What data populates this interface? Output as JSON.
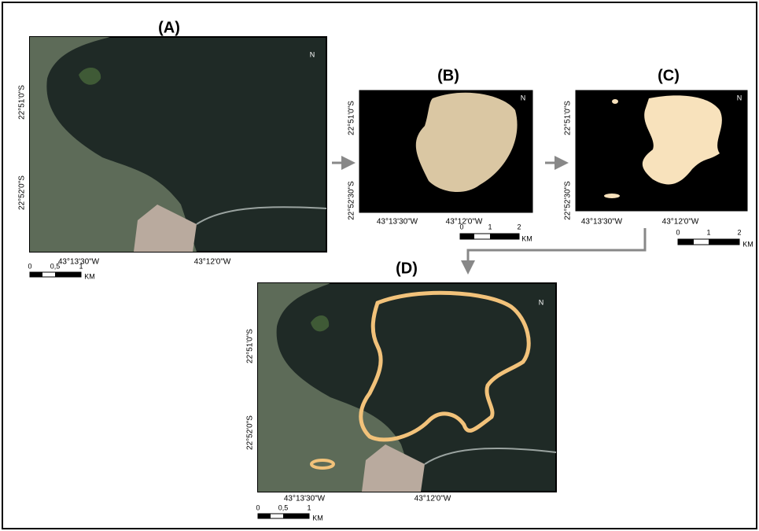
{
  "panels": [
    {
      "label": "(A)",
      "lat": [
        "22°51'0\"S",
        "22°52'0\"S"
      ],
      "lon": [
        "43°13'30\"W",
        "43°12'0\"W"
      ],
      "scale": [
        "0",
        "0,5",
        "1"
      ],
      "unit": "KM",
      "north": "N"
    },
    {
      "label": "(B)",
      "lat": [
        "22°51'0\"S",
        "22°52'30\"S"
      ],
      "lon": [
        "43°13'30\"W",
        "43°12'0\"W"
      ],
      "scale": [
        "0",
        "1",
        "2"
      ],
      "unit": "KM",
      "north": "N"
    },
    {
      "label": "(C)",
      "lat": [
        "22°51'0\"S",
        "22°52'30\"S"
      ],
      "lon": [
        "43°13'30\"W",
        "43°12'0\"W"
      ],
      "scale": [
        "0",
        "1",
        "2"
      ],
      "unit": "KM",
      "north": "N"
    },
    {
      "label": "(D)",
      "lat": [
        "22°51'0\"S",
        "22°52'0\"S"
      ],
      "lon": [
        "43°13'30\"W",
        "43°12'0\"W"
      ],
      "scale": [
        "0",
        "0,5",
        "1"
      ],
      "unit": "KM",
      "north": "N"
    }
  ]
}
